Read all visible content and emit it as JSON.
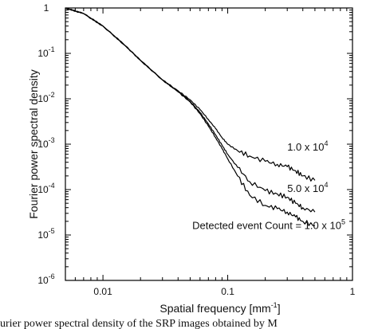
{
  "chart_data": {
    "type": "line",
    "title": "",
    "xlabel": "Spatial frequency [mm",
    "xlabel_sup": "-1",
    "xlabel_suffix": "]",
    "ylabel": "Fourier power spectral density",
    "xscale": "log",
    "yscale": "log",
    "xlim": [
      0.005,
      1
    ],
    "ylim": [
      1e-06,
      1
    ],
    "grid": false,
    "x_ticks": [
      {
        "value": 0.01,
        "label": "0.01"
      },
      {
        "value": 0.1,
        "label": "0.1"
      },
      {
        "value": 1,
        "label": "1"
      }
    ],
    "y_ticks": [
      {
        "value": 1,
        "base": "1",
        "exp": ""
      },
      {
        "value": 0.1,
        "base": "10",
        "exp": "-1"
      },
      {
        "value": 0.01,
        "base": "10",
        "exp": "-2"
      },
      {
        "value": 0.001,
        "base": "10",
        "exp": "-3"
      },
      {
        "value": 0.0001,
        "base": "10",
        "exp": "-4"
      },
      {
        "value": 1e-05,
        "base": "10",
        "exp": "-5"
      },
      {
        "value": 1e-06,
        "base": "10",
        "exp": "-6"
      }
    ],
    "series": [
      {
        "label_base": "1.0 x 10",
        "label_exp": "4",
        "label_at": [
          0.3,
          0.00072
        ],
        "x": [
          0.005,
          0.007,
          0.01,
          0.015,
          0.02,
          0.03,
          0.04,
          0.05,
          0.06,
          0.07,
          0.08,
          0.09,
          0.1,
          0.12,
          0.15,
          0.2,
          0.25,
          0.3,
          0.35,
          0.4,
          0.5
        ],
        "y": [
          1,
          0.75,
          0.4,
          0.15,
          0.07,
          0.026,
          0.015,
          0.0095,
          0.0058,
          0.0035,
          0.0022,
          0.0014,
          0.001,
          0.00072,
          0.00055,
          0.00042,
          0.00036,
          0.00032,
          0.00026,
          0.0002,
          0.00016
        ]
      },
      {
        "label_base": "5.0 x 10",
        "label_exp": "4",
        "label_at": [
          0.3,
          8.9e-05
        ],
        "x": [
          0.005,
          0.007,
          0.01,
          0.015,
          0.02,
          0.03,
          0.04,
          0.05,
          0.06,
          0.07,
          0.08,
          0.09,
          0.1,
          0.12,
          0.15,
          0.2,
          0.25,
          0.3,
          0.35,
          0.4,
          0.5
        ],
        "y": [
          1,
          0.75,
          0.4,
          0.15,
          0.07,
          0.026,
          0.0145,
          0.0088,
          0.005,
          0.0028,
          0.0016,
          0.00095,
          0.0006,
          0.00031,
          0.00015,
          9.5e-05,
          8e-05,
          6.8e-05,
          5e-05,
          4e-05,
          3.2e-05
        ]
      },
      {
        "label_base": "Detected event Count = 1.0 x 10",
        "label_exp": "5",
        "label_at": [
          0.052,
          1.35e-05
        ],
        "x": [
          0.005,
          0.007,
          0.01,
          0.015,
          0.02,
          0.03,
          0.04,
          0.05,
          0.06,
          0.07,
          0.08,
          0.09,
          0.1,
          0.12,
          0.15,
          0.2,
          0.25,
          0.3,
          0.35,
          0.4,
          0.5
        ],
        "y": [
          1,
          0.75,
          0.4,
          0.15,
          0.07,
          0.026,
          0.0142,
          0.0085,
          0.0047,
          0.0025,
          0.0014,
          0.0008,
          0.00048,
          0.0002,
          7.5e-05,
          4.5e-05,
          3.8e-05,
          3.2e-05,
          2.5e-05,
          2e-05,
          1.6e-05
        ]
      }
    ]
  },
  "caption": "urier power spectral density of the SRP images obtained by M"
}
